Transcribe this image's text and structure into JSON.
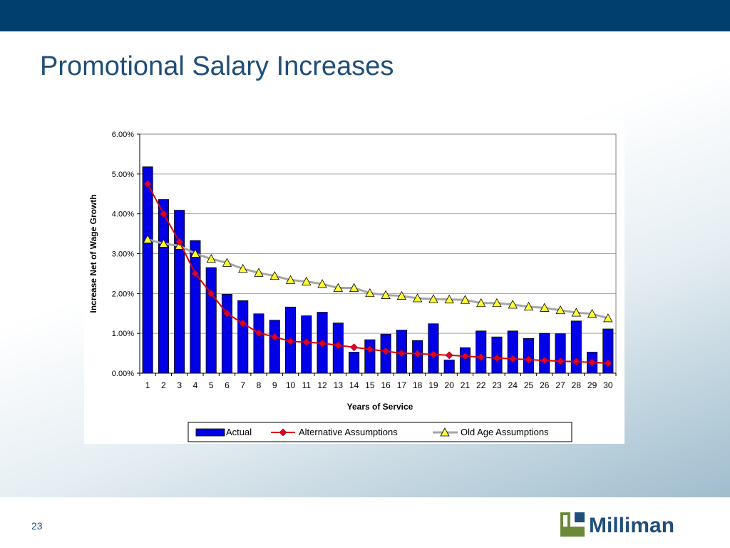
{
  "slide": {
    "title": "Promotional Salary Increases",
    "page_number": "23",
    "logo_text": "Milliman"
  },
  "colors": {
    "topbar": "#003f6e",
    "title": "#1f4e79",
    "bar": "#0000e6",
    "alt_line": "#e00000",
    "alt_marker": "#e0002a",
    "old_line": "#a6a6a6",
    "old_marker": "#ffff33",
    "logo_green": "#6a8a3a"
  },
  "chart_data": {
    "type": "bar",
    "title": "",
    "xlabel": "Years of Service",
    "ylabel": "Increase Net of Wage Growth",
    "ylim": [
      0,
      6
    ],
    "yticks": [
      "0.00%",
      "1.00%",
      "2.00%",
      "3.00%",
      "4.00%",
      "5.00%",
      "6.00%"
    ],
    "categories": [
      "1",
      "2",
      "3",
      "4",
      "5",
      "6",
      "7",
      "8",
      "9",
      "10",
      "11",
      "12",
      "13",
      "14",
      "15",
      "16",
      "17",
      "18",
      "19",
      "20",
      "21",
      "22",
      "23",
      "24",
      "25",
      "26",
      "27",
      "28",
      "29",
      "30"
    ],
    "grid": true,
    "legend_position": "bottom",
    "series": [
      {
        "name": "Actual",
        "kind": "bar",
        "values": [
          5.18,
          4.36,
          4.09,
          3.33,
          2.65,
          1.98,
          1.82,
          1.49,
          1.33,
          1.66,
          1.44,
          1.53,
          1.26,
          0.53,
          0.84,
          0.98,
          1.08,
          0.82,
          1.24,
          0.33,
          0.64,
          1.06,
          0.91,
          1.06,
          0.87,
          1.0,
          0.99,
          1.31,
          0.53,
          1.11
        ]
      },
      {
        "name": "Alternative Assumptions",
        "kind": "line",
        "marker": "diamond",
        "values": [
          4.75,
          4.0,
          3.3,
          2.5,
          2.0,
          1.5,
          1.25,
          1.01,
          0.91,
          0.8,
          0.78,
          0.75,
          0.7,
          0.65,
          0.6,
          0.55,
          0.5,
          0.49,
          0.47,
          0.45,
          0.43,
          0.4,
          0.38,
          0.36,
          0.34,
          0.32,
          0.3,
          0.29,
          0.27,
          0.25
        ]
      },
      {
        "name": "Old Age Assumptions",
        "kind": "line",
        "marker": "triangle",
        "values": [
          3.36,
          3.25,
          3.2,
          3.0,
          2.87,
          2.77,
          2.62,
          2.52,
          2.44,
          2.34,
          2.3,
          2.24,
          2.14,
          2.14,
          2.01,
          1.96,
          1.94,
          1.88,
          1.86,
          1.85,
          1.84,
          1.76,
          1.76,
          1.72,
          1.67,
          1.64,
          1.58,
          1.52,
          1.49,
          1.38
        ]
      }
    ]
  }
}
